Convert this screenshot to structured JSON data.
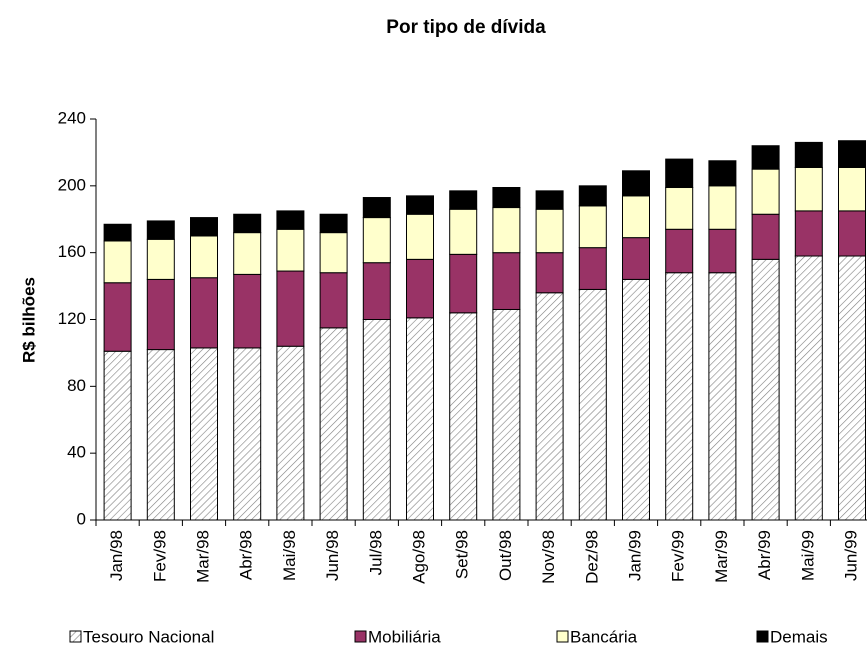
{
  "chart_data": {
    "type": "stacked_bar",
    "title": "Por tipo de dívida",
    "y_label": "R$ bilhões",
    "categories": [
      "Jan/98",
      "Fev/98",
      "Mar/98",
      "Abr/98",
      "Mai/98",
      "Jun/98",
      "Jul/98",
      "Ago/98",
      "Set/98",
      "Out/98",
      "Nov/98",
      "Dez/98",
      "Jan/99",
      "Fev/99",
      "Mar/99",
      "Abr/99",
      "Mai/99",
      "Jun/99"
    ],
    "series": [
      {
        "name": "Tesouro Nacional",
        "color": "#808080",
        "hatch": true,
        "values": [
          101,
          102,
          103,
          103,
          104,
          115,
          120,
          121,
          124,
          126,
          136,
          138,
          144,
          148,
          148,
          156,
          158,
          158
        ]
      },
      {
        "name": "Mobiliária",
        "color": "#993366",
        "values": [
          41,
          42,
          42,
          44,
          45,
          33,
          34,
          35,
          35,
          34,
          24,
          25,
          25,
          26,
          26,
          27,
          27,
          27
        ]
      },
      {
        "name": "Bancária",
        "color": "#ffffcc",
        "values": [
          25,
          24,
          25,
          25,
          25,
          24,
          27,
          27,
          27,
          27,
          26,
          25,
          25,
          25,
          26,
          27,
          26,
          26
        ]
      },
      {
        "name": "Demais",
        "color": "#000000",
        "values": [
          10,
          11,
          11,
          11,
          11,
          11,
          12,
          11,
          11,
          12,
          11,
          12,
          15,
          17,
          15,
          14,
          15,
          16
        ]
      }
    ],
    "ylim": [
      0,
      240
    ],
    "yticks": [
      0,
      40,
      80,
      120,
      160,
      200,
      240
    ],
    "legend": "bottom"
  }
}
